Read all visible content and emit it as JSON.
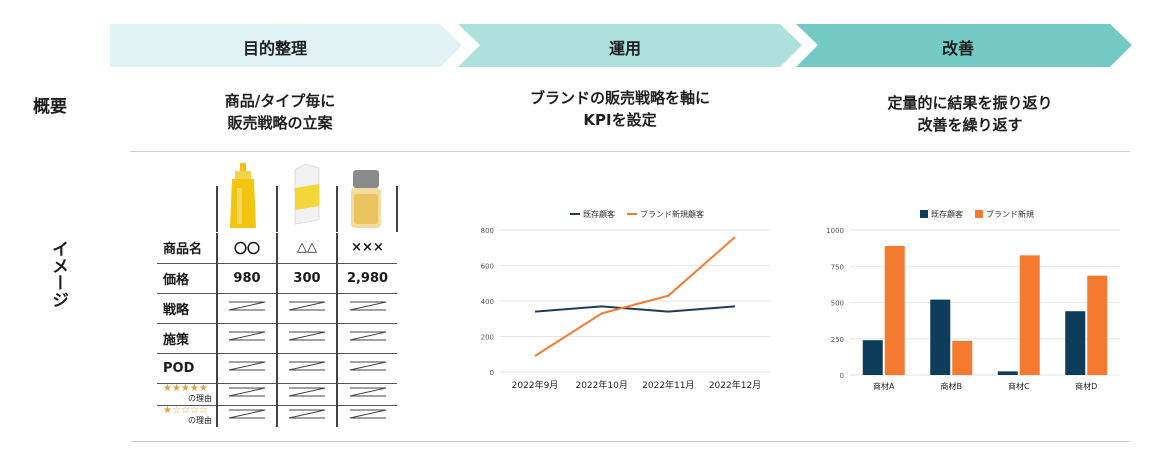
{
  "steps": [
    {
      "label": "目的整理",
      "color": "#e1f2f5"
    },
    {
      "label": "運用",
      "color": "#aee0dc"
    },
    {
      "label": "改善",
      "color": "#74cbc6"
    }
  ],
  "rows": {
    "overview_label": "概要",
    "image_label": "イメージ"
  },
  "summaries": [
    {
      "line1": "商品/タイプ毎に",
      "line2": "販売戦略の立案"
    },
    {
      "line1": "ブランドの販売戦略を軸に",
      "line2": "KPIを設定"
    },
    {
      "line1": "定量的に結果を振り返り",
      "line2": "改善を繰り返す"
    }
  ],
  "product_table": {
    "columns": [
      "〇〇",
      "△△",
      "×××"
    ],
    "rows": [
      {
        "label": "商品名",
        "cells": [
          "〇〇",
          "△△",
          "×××"
        ]
      },
      {
        "label": "価格",
        "cells": [
          "980",
          "300",
          "2,980"
        ]
      },
      {
        "label": "戦略",
        "cells": [
          "",
          "",
          ""
        ]
      },
      {
        "label": "施策",
        "cells": [
          "",
          "",
          ""
        ]
      },
      {
        "label": "POD",
        "cells": [
          "",
          "",
          ""
        ]
      }
    ],
    "star_rows": [
      {
        "stars": "★★★★★",
        "note": "の理由"
      },
      {
        "stars": "★☆☆☆☆",
        "note": "の理由"
      }
    ],
    "bottle_colors": [
      "#f2c511",
      "#f4d63a",
      "#e8b84a"
    ]
  },
  "chart_data": [
    {
      "type": "line",
      "categories": [
        "2022年9月",
        "2022年10月",
        "2022年11月",
        "2022年12月"
      ],
      "series": [
        {
          "name": "既存顧客",
          "values": [
            340,
            370,
            340,
            370
          ],
          "color": "#1f3d5a"
        },
        {
          "name": "ブランド新規顧客",
          "values": [
            90,
            330,
            430,
            760
          ],
          "color": "#f47a30"
        }
      ],
      "ylim": [
        0,
        800
      ],
      "yticks": [
        "0",
        "200",
        "400",
        "600",
        "800"
      ],
      "legend": "top"
    },
    {
      "type": "bar",
      "categories": [
        "商材A",
        "商材B",
        "商材C",
        "商材D"
      ],
      "series": [
        {
          "name": "既存顧客",
          "values": [
            240,
            520,
            25,
            440
          ],
          "color": "#0e3d5c"
        },
        {
          "name": "ブランド新規",
          "values": [
            890,
            235,
            825,
            685
          ],
          "color": "#f47a30"
        }
      ],
      "ylim": [
        0,
        1000
      ],
      "yticks": [
        "0",
        "250",
        "500",
        "750",
        "1000"
      ],
      "legend": "top"
    }
  ]
}
